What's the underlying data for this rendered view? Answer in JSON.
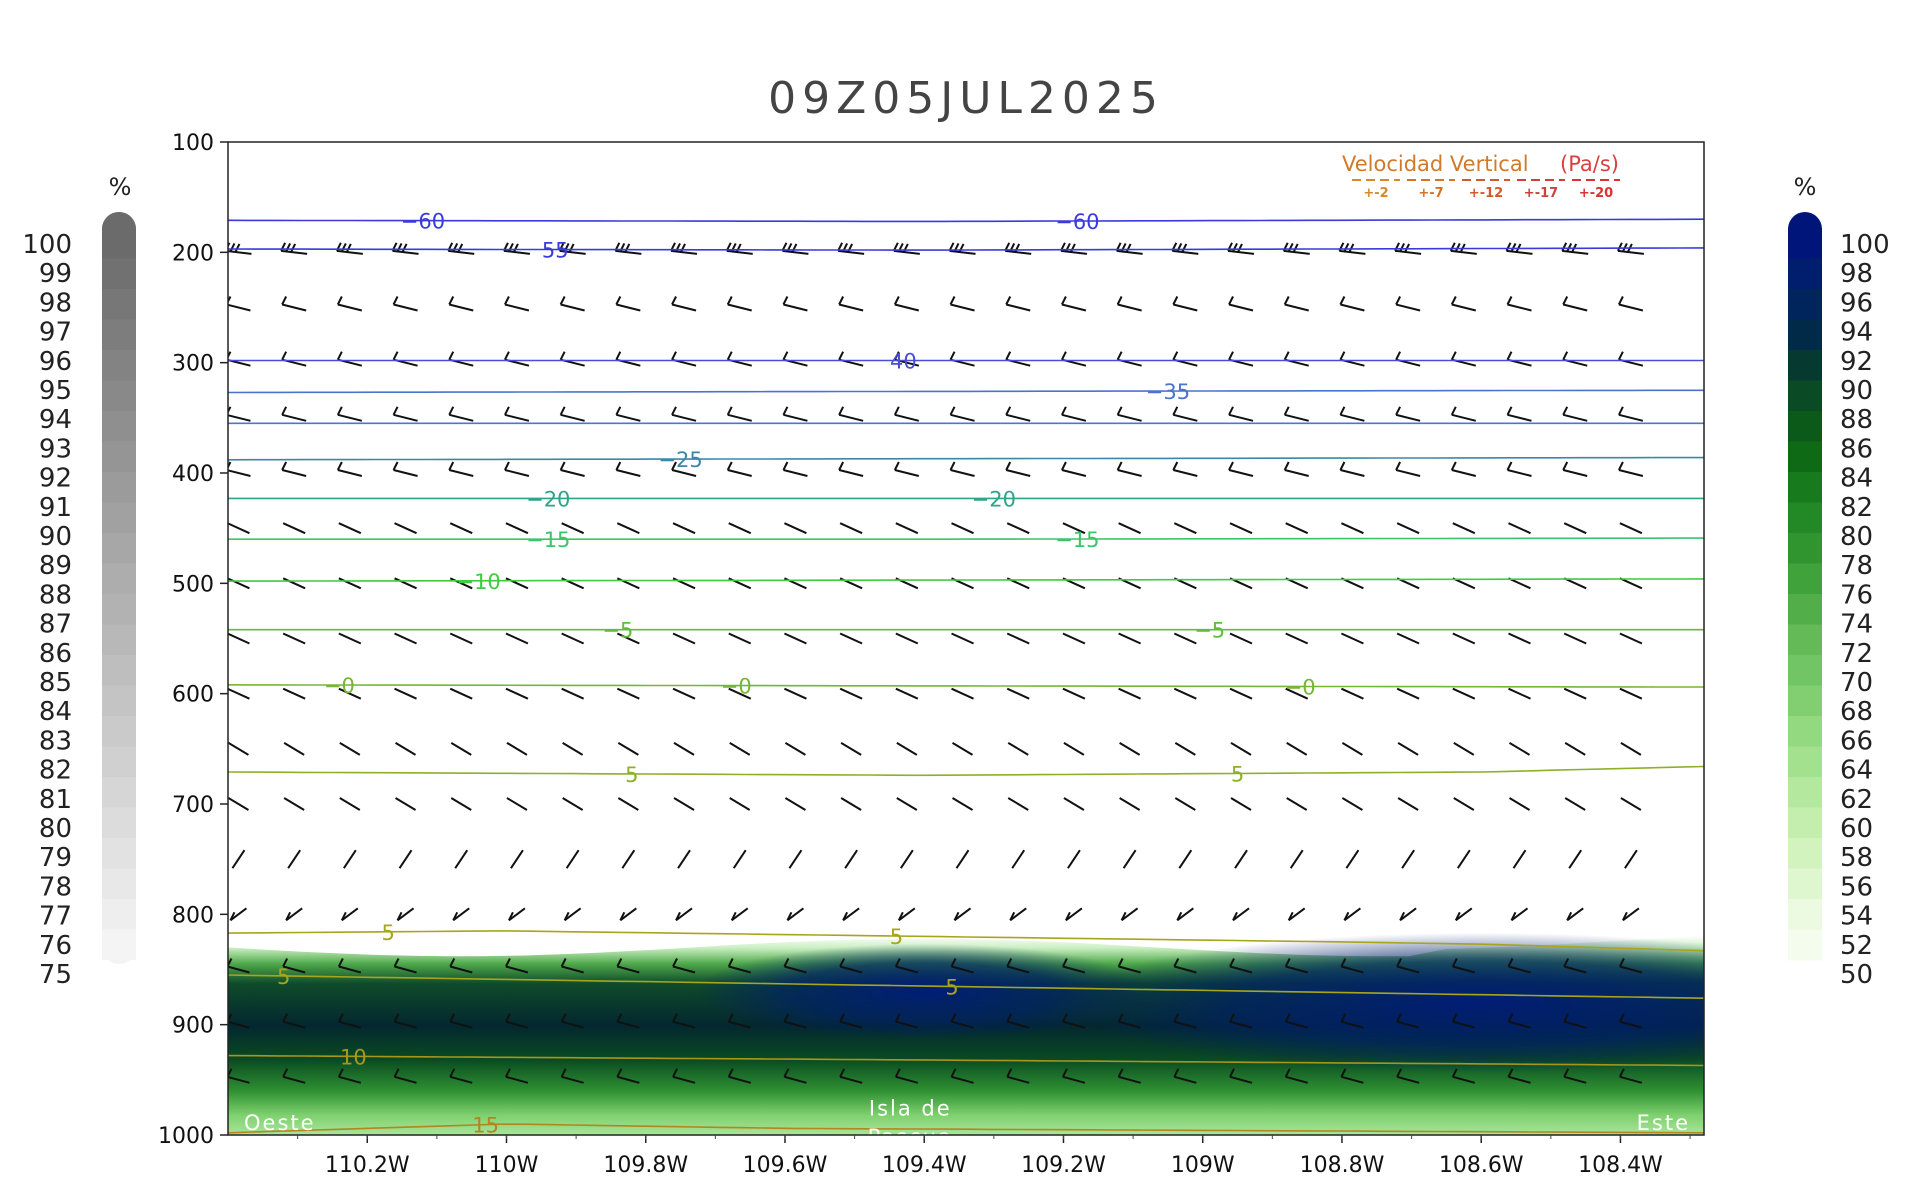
{
  "chart_data": {
    "type": "heatmap",
    "title": "09Z05JUL2025",
    "y_axis": {
      "ticks": [
        100,
        200,
        300,
        400,
        500,
        600,
        700,
        800,
        900,
        1000
      ],
      "ylim": [
        100,
        1000
      ],
      "inverted": true
    },
    "x_axis": {
      "tick_labels": [
        "110.2W",
        "110W",
        "109.8W",
        "109.6W",
        "109.4W",
        "109.2W",
        "109W",
        "108.8W",
        "108.6W",
        "108.4W"
      ],
      "tick_values": [
        -110.2,
        -110.0,
        -109.8,
        -109.6,
        -109.4,
        -109.2,
        -109.0,
        -108.8,
        -108.6,
        -108.4
      ],
      "xlim": [
        -110.4,
        -108.28
      ]
    },
    "left_colorbar": {
      "unit": "%",
      "labels": [
        100,
        99,
        98,
        97,
        96,
        95,
        94,
        93,
        92,
        91,
        90,
        89,
        88,
        87,
        86,
        85,
        84,
        83,
        82,
        81,
        80,
        79,
        78,
        77,
        76,
        75
      ],
      "colors": [
        "#6b6b6b",
        "#f2f2f2"
      ]
    },
    "right_colorbar": {
      "unit": "%",
      "labels": [
        100,
        98,
        96,
        94,
        92,
        90,
        88,
        86,
        84,
        82,
        80,
        78,
        76,
        74,
        72,
        70,
        68,
        66,
        64,
        62,
        60,
        58,
        56,
        54,
        52,
        50
      ],
      "colors": [
        "#00157a",
        "#001d6e",
        "#00245c",
        "#002a48",
        "#063a30",
        "#0a4a24",
        "#0c5a1a",
        "#0e6a14",
        "#177a1c",
        "#238826",
        "#31952f",
        "#40a23a",
        "#52ae48",
        "#63ba57",
        "#72c564",
        "#82cf72",
        "#92d97f",
        "#a3e18e",
        "#b3e89e",
        "#c3eeae",
        "#d2f3be",
        "#dff7cf",
        "#ebfae0",
        "#f4fcee"
      ]
    },
    "temperature_contours": [
      {
        "value": -60,
        "levels": [
          {
            "x": -110.4,
            "p": 171
          },
          {
            "x": -109.4,
            "p": 172
          },
          {
            "x": -108.28,
            "p": 170
          }
        ],
        "color": "#3a3adc",
        "labels": [
          {
            "x": -110.12,
            "text": "−60"
          },
          {
            "x": -109.18,
            "text": "−60"
          }
        ]
      },
      {
        "value": -55,
        "levels": [
          {
            "x": -110.4,
            "p": 197
          },
          {
            "x": -109.4,
            "p": 198
          },
          {
            "x": -108.28,
            "p": 196
          }
        ],
        "color": "#3a3adc",
        "labels": [
          {
            "x": -109.93,
            "text": "55"
          }
        ]
      },
      {
        "value": -40,
        "levels": [
          {
            "x": -110.4,
            "p": 298
          },
          {
            "x": -108.28,
            "p": 298
          }
        ],
        "color": "#4b4bd8",
        "labels": [
          {
            "x": -109.43,
            "text": "40"
          }
        ]
      },
      {
        "value": -35,
        "levels": [
          {
            "x": -110.4,
            "p": 327
          },
          {
            "x": -108.28,
            "p": 325
          }
        ],
        "color": "#4a74cc",
        "labels": [
          {
            "x": -109.05,
            "text": "−35"
          }
        ]
      },
      {
        "value": -30,
        "levels": [
          {
            "x": -110.4,
            "p": 355
          },
          {
            "x": -108.28,
            "p": 355
          }
        ],
        "color": "#4a7ac4",
        "labels": []
      },
      {
        "value": -25,
        "levels": [
          {
            "x": -110.4,
            "p": 388
          },
          {
            "x": -108.28,
            "p": 386
          }
        ],
        "color": "#3d86a8",
        "labels": [
          {
            "x": -109.75,
            "text": "−25"
          }
        ]
      },
      {
        "value": -20,
        "levels": [
          {
            "x": -110.4,
            "p": 423
          },
          {
            "x": -108.28,
            "p": 423
          }
        ],
        "color": "#2ea58a",
        "labels": [
          {
            "x": -109.94,
            "text": "−20"
          },
          {
            "x": -109.3,
            "text": "−20"
          }
        ]
      },
      {
        "value": -15,
        "levels": [
          {
            "x": -110.4,
            "p": 460
          },
          {
            "x": -109.4,
            "p": 460
          },
          {
            "x": -108.28,
            "p": 459
          }
        ],
        "color": "#3dc46a",
        "labels": [
          {
            "x": -109.94,
            "text": "−15"
          },
          {
            "x": -109.18,
            "text": "−15"
          }
        ]
      },
      {
        "value": -10,
        "levels": [
          {
            "x": -110.4,
            "p": 498
          },
          {
            "x": -108.28,
            "p": 496
          }
        ],
        "color": "#3fcc3f",
        "labels": [
          {
            "x": -110.04,
            "text": "−10"
          }
        ]
      },
      {
        "value": -5,
        "levels": [
          {
            "x": -110.4,
            "p": 542
          },
          {
            "x": -108.28,
            "p": 542
          }
        ],
        "color": "#5cbf3a",
        "labels": [
          {
            "x": -109.84,
            "text": "−5"
          },
          {
            "x": -108.99,
            "text": "−5"
          }
        ]
      },
      {
        "value": 0,
        "levels": [
          {
            "x": -110.4,
            "p": 592
          },
          {
            "x": -108.28,
            "p": 594
          }
        ],
        "color": "#76b636",
        "labels": [
          {
            "x": -110.24,
            "text": "−0"
          },
          {
            "x": -109.67,
            "text": "−0"
          },
          {
            "x": -108.86,
            "text": "−0"
          }
        ]
      },
      {
        "value": 5,
        "levels": [
          {
            "x": -110.4,
            "p": 671
          },
          {
            "x": -109.4,
            "p": 674
          },
          {
            "x": -108.6,
            "p": 671
          },
          {
            "x": -108.28,
            "p": 666
          }
        ],
        "color": "#8cb028",
        "labels": [
          {
            "x": -109.82,
            "text": "5"
          },
          {
            "x": -108.95,
            "text": "5"
          }
        ]
      },
      {
        "value": 5,
        "levels": [
          {
            "x": -110.4,
            "p": 817
          },
          {
            "x": -110.0,
            "p": 815
          },
          {
            "x": -109.4,
            "p": 820
          },
          {
            "x": -108.8,
            "p": 825
          },
          {
            "x": -108.6,
            "p": 827
          },
          {
            "x": -108.28,
            "p": 833
          }
        ],
        "color": "#a7a51c",
        "labels": [
          {
            "x": -110.17,
            "text": "5"
          },
          {
            "x": -109.44,
            "text": "5"
          }
        ]
      },
      {
        "value": 5,
        "levels": [
          {
            "x": -110.4,
            "p": 855
          },
          {
            "x": -109.4,
            "p": 865
          },
          {
            "x": -108.28,
            "p": 876
          }
        ],
        "color": "#a7a51c",
        "labels": [
          {
            "x": -110.32,
            "text": "5"
          },
          {
            "x": -109.36,
            "text": "5"
          }
        ]
      },
      {
        "value": 10,
        "levels": [
          {
            "x": -110.4,
            "p": 928
          },
          {
            "x": -109.4,
            "p": 932
          },
          {
            "x": -108.28,
            "p": 937
          }
        ],
        "color": "#a7961c",
        "labels": [
          {
            "x": -110.22,
            "text": "10"
          }
        ]
      },
      {
        "value": 15,
        "levels": [
          {
            "x": -110.4,
            "p": 998
          },
          {
            "x": -110.0,
            "p": 990
          },
          {
            "x": -109.6,
            "p": 994
          },
          {
            "x": -108.28,
            "p": 998
          }
        ],
        "color": "#b2861c",
        "labels": [
          {
            "x": -110.03,
            "text": "15"
          }
        ]
      }
    ],
    "humidity_field": {
      "top_p": 830,
      "note": "dense moist layer near surface (>84%), maxima near 109.4W–108.3W around 870 hPa"
    },
    "wind_barb_levels": [
      200,
      250,
      300,
      350,
      400,
      450,
      500,
      550,
      600,
      650,
      700,
      750,
      800,
      850,
      900,
      950
    ],
    "legend": {
      "title": "Velocidad Vertical (Pa/s)",
      "entries": [
        "+-2",
        "+-7",
        "+-12",
        "+-17",
        "+-20"
      ],
      "colors": [
        "#d68a2a",
        "#d3742a",
        "#cf5a2a",
        "#cc4040",
        "#dd3030"
      ]
    },
    "annotations": {
      "left": "Oeste",
      "center_line1": "Isla de",
      "center_line2": "Pascua",
      "right": "Este"
    }
  }
}
